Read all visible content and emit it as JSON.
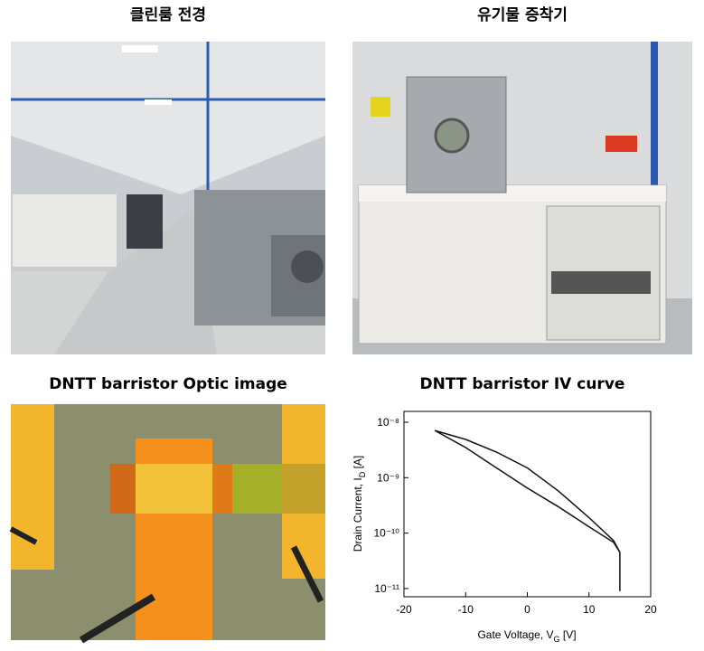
{
  "panels": [
    {
      "title": "클린룸 전경"
    },
    {
      "title": "유기물 증착기"
    },
    {
      "title": "DNTT barristor Optic image"
    }
  ],
  "chart_data": {
    "type": "line",
    "title": "DNTT barristor IV curve",
    "xlabel": [
      "Gate Voltage, V",
      "G",
      " [V]"
    ],
    "ylabel": [
      "Drain Current, I",
      "D",
      " [A]"
    ],
    "xlim": [
      -20,
      20
    ],
    "xticks": [
      -20,
      -10,
      0,
      10,
      20
    ],
    "ylim": [
      7.1e-12,
      1.57e-08
    ],
    "log_y": true,
    "yticks": [
      {
        "value": 1e-08,
        "label": "10⁻⁸"
      },
      {
        "value": 1e-09,
        "label": "10⁻⁹"
      },
      {
        "value": 1e-10,
        "label": "10⁻¹⁰"
      },
      {
        "value": 1e-11,
        "label": "10⁻¹¹"
      }
    ],
    "color": "#111111",
    "x": [
      15,
      15,
      14,
      10,
      5,
      0,
      -5,
      -10,
      -15,
      -10,
      -5,
      0,
      5,
      10,
      14,
      15
    ],
    "values": [
      9e-12,
      4.5e-11,
      7.3e-11,
      1.9e-10,
      5.8e-10,
      1.5e-09,
      2.9e-09,
      4.9e-09,
      7.1e-09,
      3.5e-09,
      1.5e-09,
      6.5e-10,
      3e-10,
      1.3e-10,
      6.8e-11,
      4.5e-11
    ]
  }
}
